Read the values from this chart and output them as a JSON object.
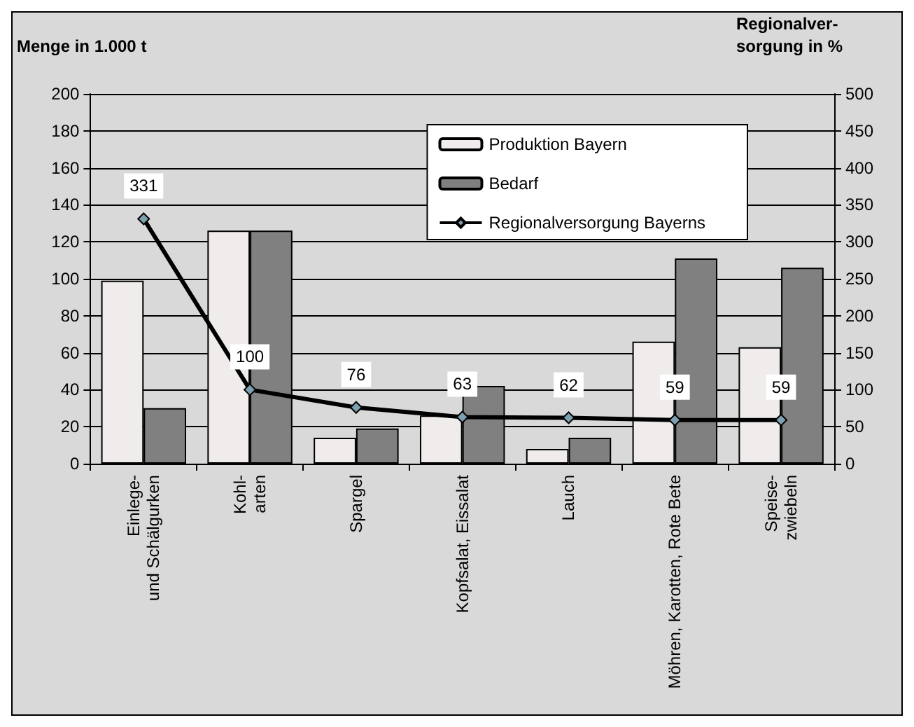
{
  "chart_data": {
    "type": "bar",
    "ylabel": "Menge in 1.000 t",
    "y2label": "Regionalver-\nsorgung in %",
    "categories": [
      "Einlege-\nund Schälgurken",
      "Kohl-\narten",
      "Spargel",
      "Kopfsalat, Eissalat",
      "Lauch",
      "Möhren, Karotten, Rote Bete",
      "Speise-\nzwiebeln"
    ],
    "series": [
      {
        "name": "Produktion Bayern",
        "color": "#f0ecec",
        "values": [
          99,
          126,
          14,
          26,
          8,
          66,
          63
        ]
      },
      {
        "name": "Bedarf",
        "color": "#808080",
        "values": [
          30,
          126,
          19,
          42,
          14,
          111,
          106
        ]
      },
      {
        "name": "Regionalversorgung Bayerns",
        "type": "line",
        "axis": "y2",
        "color": "#000000",
        "values": [
          331,
          100,
          76,
          63,
          62,
          59,
          59
        ],
        "data_labels": true,
        "marker": "diamond"
      }
    ],
    "ylim": [
      0,
      200
    ],
    "yticks": [
      0,
      20,
      40,
      60,
      80,
      100,
      120,
      140,
      160,
      180,
      200
    ],
    "y2lim": [
      0,
      500
    ],
    "y2ticks": [
      0,
      50,
      100,
      150,
      200,
      250,
      300,
      350,
      400,
      450,
      500
    ],
    "grid": "y",
    "legend": "top right"
  }
}
